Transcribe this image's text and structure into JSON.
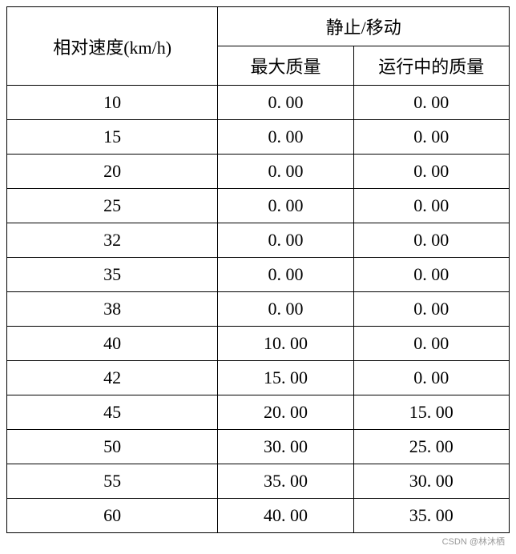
{
  "table": {
    "header": {
      "speed_label": "相对速度(km/h)",
      "group_label": "静止/移动",
      "max_mass_label": "最大质量",
      "running_mass_label": "运行中的质量"
    },
    "rows": [
      {
        "speed": "10",
        "max_mass": "0. 00",
        "running_mass": "0. 00"
      },
      {
        "speed": "15",
        "max_mass": "0. 00",
        "running_mass": "0. 00"
      },
      {
        "speed": "20",
        "max_mass": "0. 00",
        "running_mass": "0. 00"
      },
      {
        "speed": "25",
        "max_mass": "0. 00",
        "running_mass": "0. 00"
      },
      {
        "speed": "32",
        "max_mass": "0. 00",
        "running_mass": "0. 00"
      },
      {
        "speed": "35",
        "max_mass": "0. 00",
        "running_mass": "0. 00"
      },
      {
        "speed": "38",
        "max_mass": "0. 00",
        "running_mass": "0. 00"
      },
      {
        "speed": "40",
        "max_mass": "10. 00",
        "running_mass": "0. 00"
      },
      {
        "speed": "42",
        "max_mass": "15. 00",
        "running_mass": "0. 00"
      },
      {
        "speed": "45",
        "max_mass": "20. 00",
        "running_mass": "15. 00"
      },
      {
        "speed": "50",
        "max_mass": "30. 00",
        "running_mass": "25. 00"
      },
      {
        "speed": "55",
        "max_mass": "35. 00",
        "running_mass": "30. 00"
      },
      {
        "speed": "60",
        "max_mass": "40. 00",
        "running_mass": "35. 00"
      }
    ],
    "colors": {
      "border": "#000000",
      "background": "#ffffff",
      "text": "#000000"
    },
    "font": {
      "family": "SimSun",
      "size_pt": 16
    }
  },
  "attribution": "CSDN @林沐栖"
}
